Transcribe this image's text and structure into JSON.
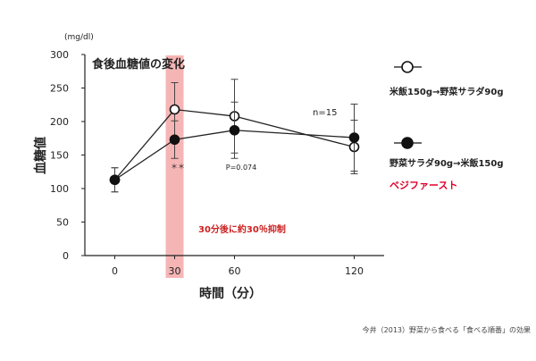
{
  "chart_data": {
    "type": "line",
    "title": "食後血糖値の変化",
    "unit_label": "(mg/dl)",
    "ylabel": "血糖値",
    "xlabel": "時間（分）",
    "ylim": [
      0,
      300
    ],
    "yticks": [
      0,
      50,
      100,
      150,
      200,
      250,
      300
    ],
    "x": [
      0,
      30,
      60,
      120
    ],
    "xticks": [
      "0",
      "30",
      "60",
      "120"
    ],
    "x_axis_range": [
      -15,
      135
    ],
    "highlight": {
      "x": 30,
      "color": "#f4a3a3",
      "note": "30分後に約30％抑制",
      "note_color": "#cc2222"
    },
    "series": [
      {
        "name": "米飯150g→野菜サラダ90g",
        "marker": "open-circle",
        "values": [
          113,
          218,
          208,
          162
        ],
        "error": [
          18,
          40,
          55,
          40
        ]
      },
      {
        "name": "野菜サラダ90g→米飯150g",
        "marker": "filled-circle",
        "values": [
          113,
          173,
          187,
          176
        ],
        "error": [
          18,
          28,
          42,
          50
        ]
      }
    ],
    "annotations": {
      "n": "n=15",
      "sig": "＊＊",
      "p": "P=0.074"
    },
    "legend_placement": "right",
    "legend_extra": {
      "text": "ベジファースト",
      "color": "#e0002a"
    },
    "source": "今井（2013）野菜から食べる「食べる順番」の効果",
    "grid": false
  }
}
